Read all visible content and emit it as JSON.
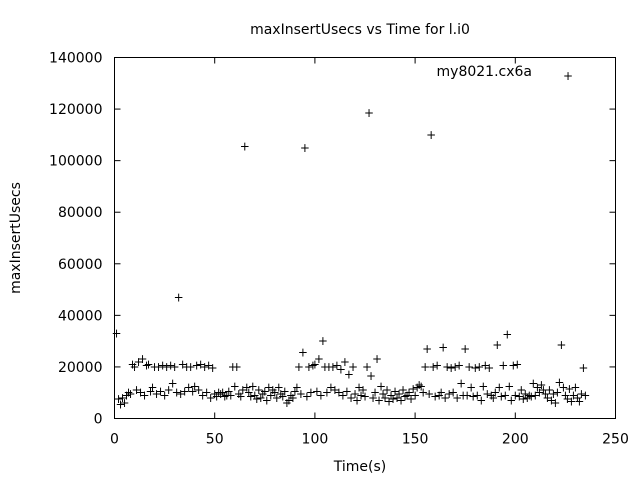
{
  "chart_data": {
    "type": "scatter",
    "title": "maxInsertUsecs vs Time for l.i0",
    "xlabel": "Time(s)",
    "ylabel": "maxInsertUsecs",
    "xlim": [
      0,
      250
    ],
    "ylim": [
      0,
      140000
    ],
    "x_ticks": [
      0,
      50,
      100,
      150,
      200,
      250
    ],
    "y_ticks": [
      0,
      20000,
      40000,
      60000,
      80000,
      100000,
      120000,
      140000
    ],
    "x_tick_labels": [
      "0",
      "50",
      "100",
      "150",
      "200",
      "250"
    ],
    "y_tick_labels": [
      "0",
      "20000",
      "40000",
      "60000",
      "80000",
      "100000",
      "120000",
      "140000"
    ],
    "grid": false,
    "legend_position": "top-right",
    "marker": "+",
    "series": [
      {
        "name": "my8021.cx6a",
        "color": "#9400d3",
        "points": [
          [
            1,
            33000
          ],
          [
            2,
            7500
          ],
          [
            3,
            5500
          ],
          [
            4,
            8000
          ],
          [
            5,
            6000
          ],
          [
            6,
            9000
          ],
          [
            7,
            10000
          ],
          [
            8,
            9500
          ],
          [
            9,
            21000
          ],
          [
            10,
            20000
          ],
          [
            11,
            11000
          ],
          [
            12,
            22000
          ],
          [
            13,
            10000
          ],
          [
            14,
            23000
          ],
          [
            15,
            9000
          ],
          [
            16,
            20500
          ],
          [
            17,
            21000
          ],
          [
            18,
            10500
          ],
          [
            19,
            12000
          ],
          [
            20,
            20000
          ],
          [
            21,
            9500
          ],
          [
            22,
            20000
          ],
          [
            23,
            10500
          ],
          [
            24,
            20500
          ],
          [
            25,
            9000
          ],
          [
            26,
            20000
          ],
          [
            27,
            11000
          ],
          [
            28,
            20500
          ],
          [
            29,
            13500
          ],
          [
            30,
            20000
          ],
          [
            31,
            10000
          ],
          [
            32,
            47000
          ],
          [
            33,
            9500
          ],
          [
            34,
            21000
          ],
          [
            35,
            10500
          ],
          [
            36,
            20000
          ],
          [
            37,
            12000
          ],
          [
            38,
            20000
          ],
          [
            39,
            10500
          ],
          [
            40,
            12500
          ],
          [
            41,
            20500
          ],
          [
            42,
            11000
          ],
          [
            43,
            21000
          ],
          [
            44,
            9000
          ],
          [
            45,
            20000
          ],
          [
            46,
            10000
          ],
          [
            47,
            20500
          ],
          [
            48,
            8000
          ],
          [
            49,
            19500
          ],
          [
            50,
            9500
          ],
          [
            51,
            8500
          ],
          [
            52,
            10000
          ],
          [
            53,
            9500
          ],
          [
            54,
            10000
          ],
          [
            55,
            8500
          ],
          [
            56,
            9000
          ],
          [
            57,
            10500
          ],
          [
            58,
            9000
          ],
          [
            59,
            20000
          ],
          [
            60,
            12500
          ],
          [
            61,
            20000
          ],
          [
            62,
            9500
          ],
          [
            63,
            8500
          ],
          [
            64,
            11000
          ],
          [
            65,
            105500
          ],
          [
            66,
            12000
          ],
          [
            67,
            10000
          ],
          [
            68,
            8500
          ],
          [
            69,
            12500
          ],
          [
            70,
            9000
          ],
          [
            71,
            7500
          ],
          [
            72,
            11000
          ],
          [
            73,
            8000
          ],
          [
            74,
            9500
          ],
          [
            75,
            10500
          ],
          [
            76,
            7000
          ],
          [
            77,
            12000
          ],
          [
            78,
            9000
          ],
          [
            79,
            11000
          ],
          [
            80,
            10000
          ],
          [
            81,
            8000
          ],
          [
            82,
            12000
          ],
          [
            83,
            9500
          ],
          [
            84,
            8500
          ],
          [
            85,
            10500
          ],
          [
            86,
            6000
          ],
          [
            87,
            7000
          ],
          [
            88,
            9000
          ],
          [
            89,
            8000
          ],
          [
            90,
            10500
          ],
          [
            91,
            12000
          ],
          [
            92,
            20000
          ],
          [
            93,
            9500
          ],
          [
            94,
            25500
          ],
          [
            95,
            105000
          ],
          [
            96,
            8500
          ],
          [
            97,
            20000
          ],
          [
            98,
            10000
          ],
          [
            99,
            20500
          ],
          [
            100,
            21000
          ],
          [
            101,
            10500
          ],
          [
            102,
            23000
          ],
          [
            103,
            9000
          ],
          [
            104,
            30000
          ],
          [
            105,
            20000
          ],
          [
            106,
            10000
          ],
          [
            107,
            20000
          ],
          [
            108,
            12000
          ],
          [
            109,
            20000
          ],
          [
            110,
            11000
          ],
          [
            111,
            20500
          ],
          [
            112,
            10000
          ],
          [
            113,
            19000
          ],
          [
            114,
            9000
          ],
          [
            115,
            22000
          ],
          [
            116,
            10500
          ],
          [
            117,
            17000
          ],
          [
            118,
            8000
          ],
          [
            119,
            20000
          ],
          [
            120,
            9500
          ],
          [
            121,
            7000
          ],
          [
            122,
            12000
          ],
          [
            123,
            9000
          ],
          [
            124,
            11000
          ],
          [
            125,
            8500
          ],
          [
            126,
            20000
          ],
          [
            127,
            118500
          ],
          [
            128,
            16500
          ],
          [
            129,
            8000
          ],
          [
            130,
            10000
          ],
          [
            131,
            23000
          ],
          [
            132,
            7000
          ],
          [
            133,
            12500
          ],
          [
            134,
            9500
          ],
          [
            135,
            8000
          ],
          [
            136,
            11000
          ],
          [
            137,
            6500
          ],
          [
            138,
            9000
          ],
          [
            139,
            7500
          ],
          [
            140,
            10500
          ],
          [
            141,
            8000
          ],
          [
            142,
            9500
          ],
          [
            143,
            7000
          ],
          [
            144,
            11000
          ],
          [
            145,
            8500
          ],
          [
            146,
            9000
          ],
          [
            147,
            10000
          ],
          [
            148,
            7500
          ],
          [
            149,
            11500
          ],
          [
            150,
            9000
          ],
          [
            151,
            12000
          ],
          [
            152,
            13000
          ],
          [
            153,
            12500
          ],
          [
            154,
            10000
          ],
          [
            155,
            20000
          ],
          [
            156,
            27000
          ],
          [
            157,
            9500
          ],
          [
            158,
            110000
          ],
          [
            159,
            20000
          ],
          [
            160,
            8500
          ],
          [
            161,
            20500
          ],
          [
            162,
            9000
          ],
          [
            163,
            10000
          ],
          [
            164,
            27500
          ],
          [
            165,
            8000
          ],
          [
            166,
            20000
          ],
          [
            167,
            9500
          ],
          [
            168,
            19500
          ],
          [
            169,
            10000
          ],
          [
            170,
            20000
          ],
          [
            171,
            8000
          ],
          [
            172,
            20500
          ],
          [
            173,
            13500
          ],
          [
            174,
            9000
          ],
          [
            175,
            27000
          ],
          [
            176,
            9000
          ],
          [
            177,
            20000
          ],
          [
            178,
            12000
          ],
          [
            179,
            8500
          ],
          [
            180,
            19500
          ],
          [
            181,
            9000
          ],
          [
            182,
            20000
          ],
          [
            183,
            7000
          ],
          [
            184,
            12500
          ],
          [
            185,
            20500
          ],
          [
            186,
            9500
          ],
          [
            187,
            19500
          ],
          [
            188,
            9000
          ],
          [
            189,
            8000
          ],
          [
            190,
            10000
          ],
          [
            191,
            28500
          ],
          [
            192,
            12000
          ],
          [
            193,
            8500
          ],
          [
            194,
            20500
          ],
          [
            195,
            9000
          ],
          [
            196,
            32500
          ],
          [
            197,
            12500
          ],
          [
            198,
            7000
          ],
          [
            199,
            20500
          ],
          [
            200,
            9000
          ],
          [
            201,
            21000
          ],
          [
            202,
            8500
          ],
          [
            203,
            11000
          ],
          [
            204,
            7500
          ],
          [
            205,
            9500
          ],
          [
            206,
            8000
          ],
          [
            207,
            9000
          ],
          [
            208,
            8500
          ],
          [
            209,
            13500
          ],
          [
            210,
            9000
          ],
          [
            211,
            12000
          ],
          [
            212,
            10000
          ],
          [
            213,
            13000
          ],
          [
            214,
            11000
          ],
          [
            215,
            9500
          ],
          [
            216,
            8000
          ],
          [
            217,
            11000
          ],
          [
            218,
            7000
          ],
          [
            219,
            9500
          ],
          [
            220,
            6000
          ],
          [
            221,
            10000
          ],
          [
            222,
            14000
          ],
          [
            223,
            28500
          ],
          [
            224,
            12000
          ],
          [
            225,
            9000
          ],
          [
            226,
            7500
          ],
          [
            227,
            11500
          ],
          [
            228,
            6500
          ],
          [
            229,
            9000
          ],
          [
            230,
            12000
          ],
          [
            231,
            8000
          ],
          [
            232,
            6500
          ],
          [
            233,
            9500
          ],
          [
            234,
            19500
          ],
          [
            235,
            9000
          ]
        ]
      }
    ]
  }
}
